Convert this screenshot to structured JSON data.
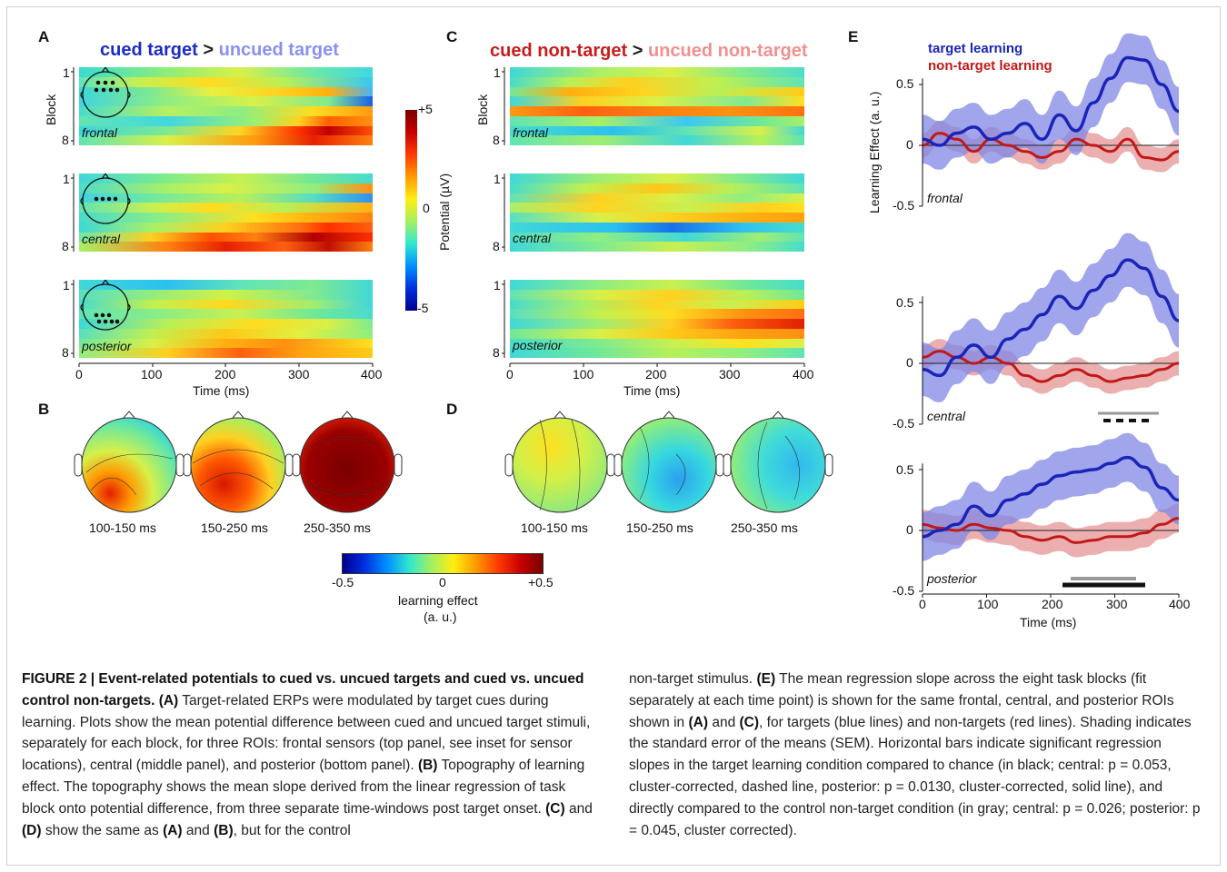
{
  "figure": {
    "panel_letters": {
      "A": "A",
      "B": "B",
      "C": "C",
      "D": "D",
      "E": "E"
    },
    "titleA": {
      "left": "cued target",
      "op": ">",
      "right": "uncued target"
    },
    "titleC": {
      "left": "cued non-target",
      "op": ">",
      "right": "uncued non-target"
    },
    "block_label": "Block",
    "block_ticks": [
      "1",
      "8"
    ],
    "roi_labels": [
      "frontal",
      "central",
      "posterior"
    ],
    "time_axis": {
      "ticks": [
        "0",
        "100",
        "200",
        "300",
        "400"
      ],
      "title": "Time (ms)"
    },
    "potential_colorbar": {
      "top": "+5",
      "mid": "0",
      "bottom": "-5",
      "title": "Potential (µV)"
    },
    "topo_labels": [
      "100-150 ms",
      "150-250 ms",
      "250-350 ms"
    ],
    "learning_colorbar": {
      "min": "-0.5",
      "mid": "0",
      "max": "+0.5",
      "title_line1": "learning effect",
      "title_line2": "(a. u.)"
    },
    "panelE": {
      "legend": [
        "target learning",
        "non-target learning"
      ],
      "ylabel": "Learning Effect (a. u.)",
      "yticks": [
        "0.5",
        "0",
        "-0.5"
      ],
      "xticks": [
        "0",
        "100",
        "200",
        "300",
        "400"
      ],
      "xlabel": "Time (ms)",
      "colors": {
        "target": "#1a24b8",
        "nontarget": "#c21818",
        "target_band": "#8087e6",
        "nontarget_band": "#e59494"
      }
    }
  },
  "caption": {
    "heading": "FIGURE 2 | Event-related potentials to cued vs. uncued targets and cued vs. uncued control non-targets.",
    "left_parts": [
      {
        "b": "(A)",
        "t": " Target-related ERPs were modulated by target cues during learning. Plots show the mean potential difference between cued and uncued target stimuli, separately for each block, for three ROIs: frontal sensors (top panel, see inset for sensor locations), central (middle panel), and posterior (bottom panel). "
      },
      {
        "b": "(B)",
        "t": " Topography of learning effect. The topography shows the mean slope derived from the linear regression of task block onto potential difference, from three separate time-windows post target onset. "
      },
      {
        "b": "(C)",
        "t": " and "
      },
      {
        "b": "(D)",
        "t": " show the same as "
      },
      {
        "b": "(A)",
        "t": " and "
      },
      {
        "b": "(B)",
        "t": ", but for the control"
      }
    ],
    "right_parts": [
      {
        "b": "",
        "t": "non-target stimulus. "
      },
      {
        "b": "(E)",
        "t": " The mean regression slope across the eight task blocks (fit separately at each time point) is shown for the same frontal, central, and posterior ROIs shown in "
      },
      {
        "b": "(A)",
        "t": " and "
      },
      {
        "b": "(C)",
        "t": ", for targets (blue lines) and non-targets (red lines). Shading indicates the standard error of the means (SEM). Horizontal bars indicate significant regression slopes in the target learning condition compared to chance (in black; central: p = 0.053, cluster-corrected, dashed line, posterior: p = 0.0130, cluster-corrected, solid line), and directly compared to the control non-target condition (in gray; central: p = 0.026; posterior: p = 0.045, cluster corrected)."
      }
    ]
  }
}
